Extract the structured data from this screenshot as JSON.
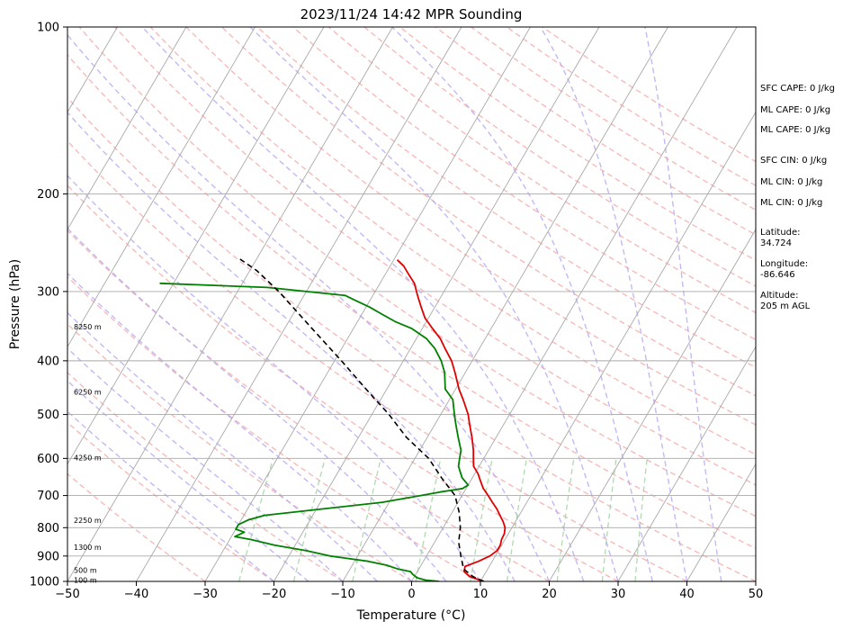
{
  "chart_data": {
    "type": "line",
    "title": "2023/11/24 14:42 MPR Sounding",
    "xlabel": "Temperature (°C)",
    "ylabel": "Pressure (hPa)",
    "xlim": [
      -50,
      50
    ],
    "ylim": [
      1000,
      100
    ],
    "yscale": "log",
    "grid": true,
    "x_ticks": [
      -50,
      -40,
      -30,
      -20,
      -10,
      0,
      10,
      20,
      30,
      40,
      50
    ],
    "y_ticks": [
      100,
      200,
      300,
      400,
      500,
      600,
      700,
      800,
      900,
      1000
    ],
    "series": [
      {
        "role": "temperature",
        "color": "#e00000",
        "points": [
          [
            10.5,
            1000
          ],
          [
            8.0,
            980
          ],
          [
            6.8,
            960
          ],
          [
            6.5,
            940
          ],
          [
            8.0,
            920
          ],
          [
            9.2,
            900
          ],
          [
            9.8,
            880
          ],
          [
            9.8,
            860
          ],
          [
            9.5,
            840
          ],
          [
            9.4,
            820
          ],
          [
            9.0,
            800
          ],
          [
            8.2,
            780
          ],
          [
            7.2,
            760
          ],
          [
            6.2,
            740
          ],
          [
            5.0,
            720
          ],
          [
            3.8,
            700
          ],
          [
            2.5,
            680
          ],
          [
            1.5,
            660
          ],
          [
            0.5,
            640
          ],
          [
            -0.8,
            620
          ],
          [
            -1.5,
            600
          ],
          [
            -2.2,
            580
          ],
          [
            -3.5,
            550
          ],
          [
            -5.0,
            520
          ],
          [
            -6.0,
            500
          ],
          [
            -8.0,
            470
          ],
          [
            -9.5,
            450
          ],
          [
            -11.5,
            420
          ],
          [
            -13.0,
            400
          ],
          [
            -15.0,
            380
          ],
          [
            -16.5,
            365
          ],
          [
            -18.5,
            350
          ],
          [
            -20.5,
            335
          ],
          [
            -22.0,
            320
          ],
          [
            -23.5,
            305
          ],
          [
            -25.0,
            290
          ],
          [
            -26.5,
            280
          ],
          [
            -28.0,
            270
          ],
          [
            -29.5,
            263
          ]
        ]
      },
      {
        "role": "dewpoint",
        "color": "#008000",
        "points": [
          [
            4.0,
            1000
          ],
          [
            2.0,
            995
          ],
          [
            0.5,
            985
          ],
          [
            -0.5,
            970
          ],
          [
            -1.0,
            960
          ],
          [
            -3.0,
            950
          ],
          [
            -5.0,
            935
          ],
          [
            -8.0,
            920
          ],
          [
            -14.0,
            900
          ],
          [
            -18.0,
            880
          ],
          [
            -23.0,
            860
          ],
          [
            -27.0,
            840
          ],
          [
            -29.5,
            830
          ],
          [
            -28.5,
            815
          ],
          [
            -30.0,
            805
          ],
          [
            -30.0,
            790
          ],
          [
            -29.0,
            775
          ],
          [
            -27.0,
            760
          ],
          [
            -19.0,
            740
          ],
          [
            -11.0,
            720
          ],
          [
            -6.0,
            700
          ],
          [
            -3.5,
            690
          ],
          [
            -0.5,
            680
          ],
          [
            0.0,
            670
          ],
          [
            -1.5,
            650
          ],
          [
            -3.0,
            620
          ],
          [
            -3.5,
            600
          ],
          [
            -4.0,
            580
          ],
          [
            -5.5,
            550
          ],
          [
            -7.0,
            520
          ],
          [
            -8.0,
            500
          ],
          [
            -9.5,
            470
          ],
          [
            -11.5,
            450
          ],
          [
            -13.0,
            420
          ],
          [
            -14.5,
            400
          ],
          [
            -16.5,
            380
          ],
          [
            -18.5,
            365
          ],
          [
            -21.5,
            350
          ],
          [
            -24.5,
            340
          ],
          [
            -27.0,
            330
          ],
          [
            -29.5,
            320
          ],
          [
            -32.5,
            310
          ],
          [
            -34.0,
            305
          ],
          [
            -46.0,
            295
          ],
          [
            -62.0,
            290
          ]
        ]
      },
      {
        "role": "parcel",
        "color": "#000000",
        "points": [
          [
            10.5,
            1000
          ],
          [
            8.5,
            980
          ],
          [
            6.5,
            950
          ],
          [
            5.0,
            900
          ],
          [
            3.5,
            850
          ],
          [
            2.5,
            800
          ],
          [
            1.0,
            750
          ],
          [
            -1.0,
            700
          ],
          [
            -4.5,
            650
          ],
          [
            -8.0,
            600
          ],
          [
            -13.0,
            550
          ],
          [
            -17.5,
            500
          ],
          [
            -23.0,
            450
          ],
          [
            -29.0,
            400
          ],
          [
            -36.0,
            350
          ],
          [
            -44.0,
            300
          ],
          [
            -49.0,
            275
          ],
          [
            -53.0,
            260
          ]
        ]
      }
    ],
    "altitude_labels": [
      {
        "text": "100 m",
        "p": 995
      },
      {
        "text": "500 m",
        "p": 955
      },
      {
        "text": "1300 m",
        "p": 868
      },
      {
        "text": "2250 m",
        "p": 775
      },
      {
        "text": "4250 m",
        "p": 598
      },
      {
        "text": "6250 m",
        "p": 455
      },
      {
        "text": "8250 m",
        "p": 347
      }
    ],
    "info": [
      "SFC CAPE: 0 J/kg",
      "ML CAPE: 0 J/kg",
      "ML CAPE: 0 J/kg",
      "SFC CIN: 0 J/kg",
      "ML CIN: 0 J/kg",
      "ML CIN: 0 J/kg",
      "Latitude:\n34.724",
      "Longitude:\n-86.646",
      "Altitude:\n205 m AGL"
    ]
  }
}
